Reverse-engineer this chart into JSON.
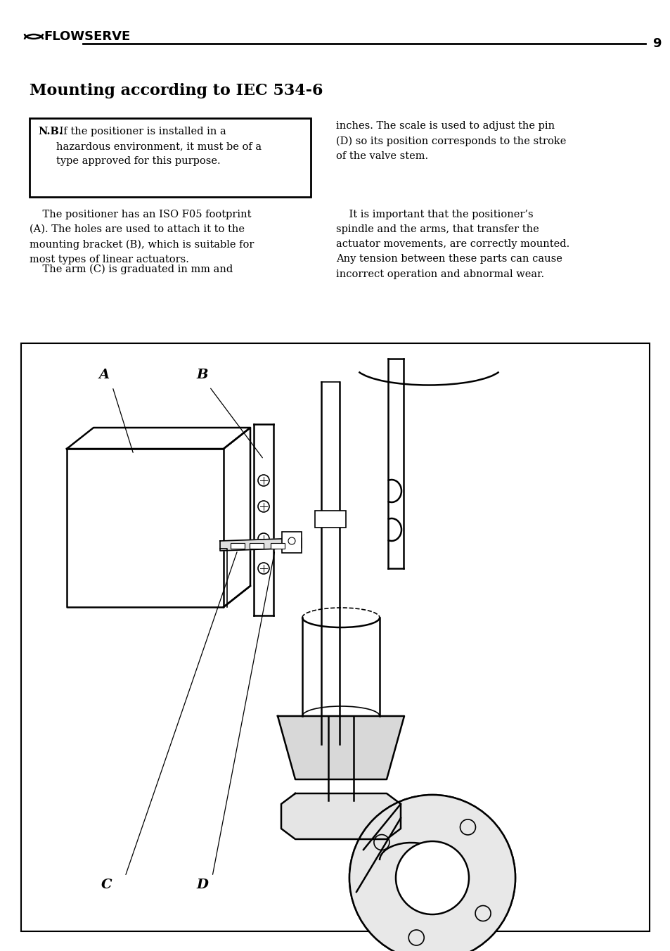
{
  "page_number": "9",
  "logo_text": "FLOWSERVE",
  "title": "Mounting according to IEC 534-6",
  "note_label": "N.B.",
  "note_rest": " If the positioner is installed in a\nhazardous environment, it must be of a\ntype approved for this purpose.",
  "col1_para1": "    The positioner has an ISO F05 footprint\n(A). The holes are used to attach it to the\nmounting bracket (B), which is suitable for\nmost types of linear actuators.",
  "col1_para2": "    The arm (C) is graduated in mm and",
  "col2_para1": "inches. The scale is used to adjust the pin\n(D) so its position corresponds to the stroke\nof the valve stem.",
  "col2_para2": "    It is important that the positioner’s\nspindle and the arms, that transfer the\nactuator movements, are correctly mounted.\nAny tension between these parts can cause\nincorrect operation and abnormal wear.",
  "diagram_labels": [
    "A",
    "B",
    "C",
    "D"
  ],
  "background_color": "#ffffff",
  "text_color": "#000000",
  "font_size_title": 16,
  "font_size_body": 10.5,
  "font_size_note": 10.5,
  "font_size_logo": 13,
  "font_size_page": 13,
  "font_size_label": 14
}
